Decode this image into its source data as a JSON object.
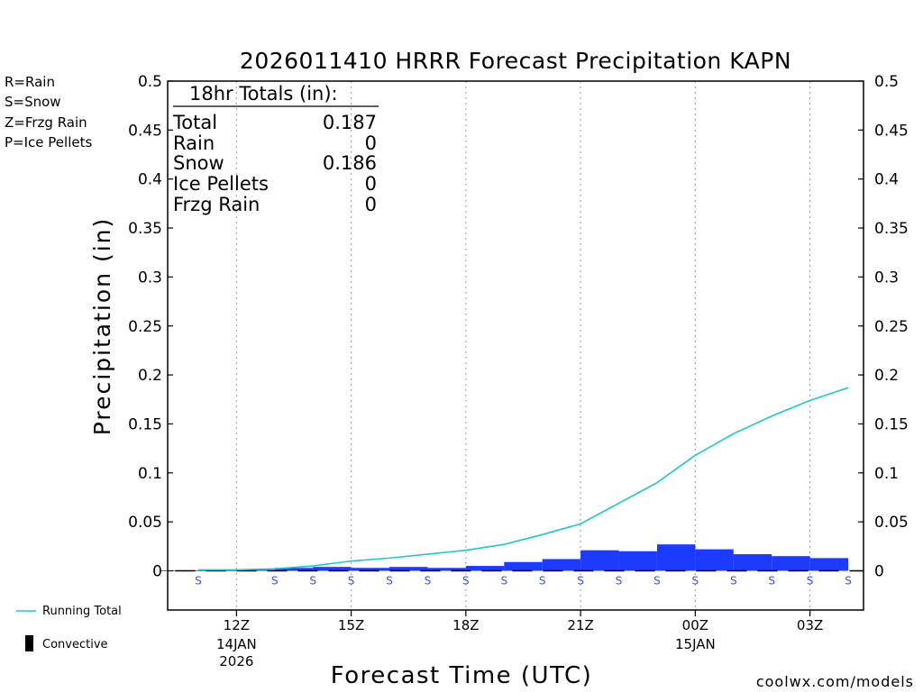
{
  "chart_data": {
    "type": "bar",
    "title": "2026011410 HRRR Forecast Precipitation KAPN",
    "xlabel": "Forecast Time (UTC)",
    "ylabel": "Precipitation (in)",
    "ylim": [
      -0.04,
      0.5
    ],
    "yticks": [
      "0.5",
      "0.45",
      "0.4",
      "0.35",
      "0.3",
      "0.25",
      "0.2",
      "0.15",
      "0.1",
      "0.05",
      "0"
    ],
    "ytick_values": [
      0.5,
      0.45,
      0.4,
      0.35,
      0.3,
      0.25,
      0.2,
      0.15,
      0.1,
      0.05,
      0
    ],
    "xlim": [
      10.2,
      28.4
    ],
    "xticks": [
      {
        "hour": 12,
        "label": "12Z",
        "date": "14JAN",
        "year": "2026"
      },
      {
        "hour": 15,
        "label": "15Z",
        "date": "",
        "year": ""
      },
      {
        "hour": 18,
        "label": "18Z",
        "date": "",
        "year": ""
      },
      {
        "hour": 21,
        "label": "21Z",
        "date": "",
        "year": ""
      },
      {
        "hour": 24,
        "label": "00Z",
        "date": "15JAN",
        "year": ""
      },
      {
        "hour": 27,
        "label": "03Z",
        "date": "",
        "year": ""
      }
    ],
    "hours": [
      11,
      12,
      13,
      14,
      15,
      16,
      17,
      18,
      19,
      20,
      21,
      22,
      23,
      24,
      25,
      26,
      27,
      28
    ],
    "hourly_precip": [
      0.0005,
      0.0005,
      0.001,
      0.003,
      0.004,
      0.003,
      0.004,
      0.003,
      0.005,
      0.009,
      0.012,
      0.021,
      0.02,
      0.027,
      0.022,
      0.017,
      0.015,
      0.013
    ],
    "running_total": [
      0.001,
      0.001,
      0.002,
      0.005,
      0.01,
      0.013,
      0.017,
      0.021,
      0.027,
      0.037,
      0.048,
      0.069,
      0.09,
      0.118,
      0.14,
      0.158,
      0.174,
      0.187
    ],
    "precip_type_markers": [
      "S",
      "",
      "S",
      "S",
      "S",
      "S",
      "S",
      "S",
      "S",
      "S",
      "S",
      "S",
      "S",
      "S",
      "S",
      "S",
      "S",
      "S"
    ],
    "series_colors": {
      "bars": "#1d3bff",
      "running_total": "#1ec8c8",
      "snow_marker": "#3a50ff"
    }
  },
  "totals_box": {
    "header": "18hr Totals (in):",
    "rows": [
      {
        "label": "Total",
        "value": "0.187"
      },
      {
        "label": "Rain",
        "value": "0"
      },
      {
        "label": "Snow",
        "value": "0.186"
      },
      {
        "label": "Ice Pellets",
        "value": "0"
      },
      {
        "label": "Frzg Rain",
        "value": "0"
      }
    ]
  },
  "type_legend": [
    {
      "text": "R=Rain",
      "color": "#22dd22"
    },
    {
      "text": "S=Snow",
      "color": "#3a50ff"
    },
    {
      "text": "Z=Frzg Rain",
      "color": "#f08c28"
    },
    {
      "text": "P=Ice Pellets",
      "color": "#e8288c"
    }
  ],
  "series_legend": {
    "running_total": "Running Total",
    "convective": "Convective"
  },
  "credit": {
    "text": "coolwx.com/models",
    "color": "#e02020"
  }
}
